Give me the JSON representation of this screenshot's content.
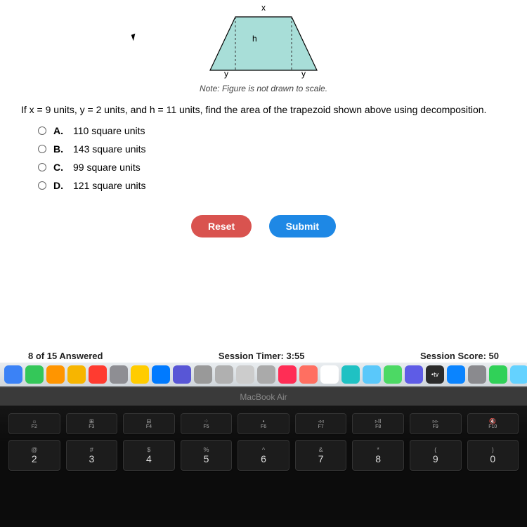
{
  "figure": {
    "label_top": "x",
    "label_height": "h",
    "label_bottom_left": "y",
    "label_bottom_right": "y",
    "note": "Note: Figure is not drawn to scale.",
    "fill_color": "#a8ded8",
    "stroke_color": "#000000",
    "dash_color": "#333333"
  },
  "question": "If x = 9 units, y = 2 units, and h = 11 units, find the area of the trapezoid shown above using decomposition.",
  "choices": [
    {
      "letter": "A.",
      "text": "110 square units"
    },
    {
      "letter": "B.",
      "text": "143 square units"
    },
    {
      "letter": "C.",
      "text": "99 square units"
    },
    {
      "letter": "D.",
      "text": "121 square units"
    }
  ],
  "buttons": {
    "reset": "Reset",
    "submit": "Submit"
  },
  "colors": {
    "reset_btn": "#d9534f",
    "submit_btn": "#1e88e5"
  },
  "status": {
    "progress": "8 of 15 Answered",
    "timer": "Session Timer: 3:55",
    "score": "Session Score: 50"
  },
  "dock_colors": [
    "#3b82f6",
    "#34c759",
    "#ff9500",
    "#f7b500",
    "#ff3b30",
    "#8e8e93",
    "#ffcc00",
    "#007aff",
    "#5856d6",
    "#999999",
    "#b0b0b0",
    "#cccccc",
    "#aaaaaa",
    "#ff2d55",
    "#ff6f61",
    "#ffffff",
    "#1fc1c3",
    "#5ac8fa",
    "#4cd964",
    "#5e5ce6",
    "#d70015",
    "#0a84ff",
    "#8a8a8e",
    "#30d158",
    "#64d2ff",
    "#8e8e93",
    "#2c78e4"
  ],
  "laptop": {
    "model": "MacBook Air"
  },
  "fn_keys": [
    {
      "icon": "☼",
      "label": "F2"
    },
    {
      "icon": "⊞",
      "label": "F3"
    },
    {
      "icon": "⊟",
      "label": "F4"
    },
    {
      "icon": "⁘",
      "label": "F5"
    },
    {
      "icon": "•",
      "label": "F6"
    },
    {
      "icon": "◃◃",
      "label": "F7"
    },
    {
      "icon": "▹II",
      "label": "F8"
    },
    {
      "icon": "▹▹",
      "label": "F9"
    },
    {
      "icon": "🔇",
      "label": "F10"
    }
  ],
  "num_keys": [
    {
      "sym": "@",
      "main": "2"
    },
    {
      "sym": "#",
      "main": "3"
    },
    {
      "sym": "$",
      "main": "4"
    },
    {
      "sym": "%",
      "main": "5"
    },
    {
      "sym": "^",
      "main": "6"
    },
    {
      "sym": "&",
      "main": "7"
    },
    {
      "sym": "*",
      "main": "8"
    },
    {
      "sym": "(",
      "main": "9"
    },
    {
      "sym": ")",
      "main": "0"
    }
  ],
  "tv_badge": "tv"
}
